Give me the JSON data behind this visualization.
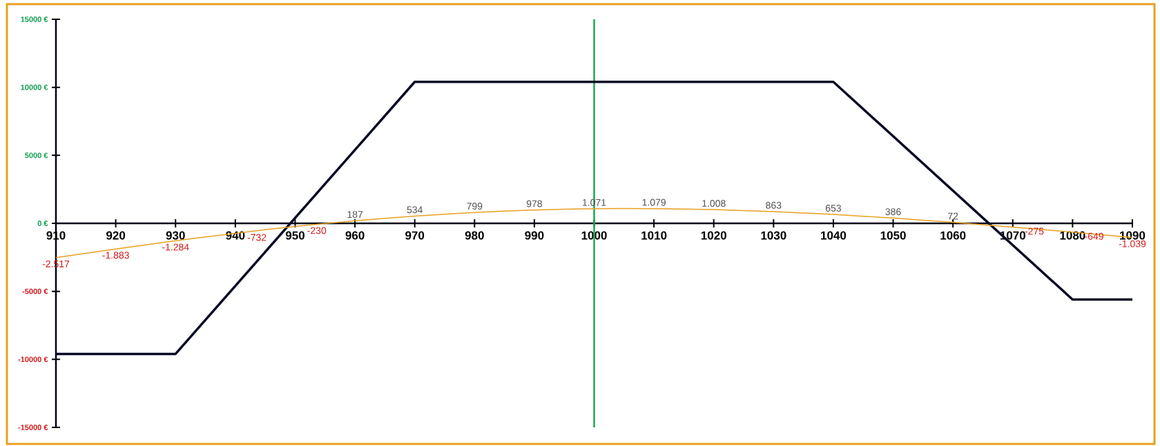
{
  "chart_data": {
    "type": "line",
    "xlim": [
      910,
      1090
    ],
    "ylim": [
      -15000,
      15000
    ],
    "xticks": [
      910,
      920,
      930,
      940,
      950,
      960,
      970,
      980,
      990,
      1000,
      1010,
      1020,
      1030,
      1040,
      1050,
      1060,
      1070,
      1080,
      1090
    ],
    "yticks": [
      {
        "value": -15000,
        "label": "-15000 €"
      },
      {
        "value": -10000,
        "label": "-10000 €"
      },
      {
        "value": -5000,
        "label": "-5000 €"
      },
      {
        "value": 0,
        "label": "0 €"
      },
      {
        "value": 5000,
        "label": "5000 €"
      },
      {
        "value": 10000,
        "label": "10000 €"
      },
      {
        "value": 15000,
        "label": "15000 €"
      }
    ],
    "marker": "none",
    "line_style": "solid",
    "series": [
      {
        "color": "#080a24",
        "x": [
          910,
          930,
          970,
          1040,
          1080,
          1090
        ],
        "values": [
          -9600,
          -9600,
          10400,
          10400,
          -5600,
          -5600
        ]
      },
      {
        "color": "#e8a020",
        "x": [
          910,
          920,
          930,
          940,
          950,
          960,
          970,
          980,
          990,
          1000,
          1010,
          1020,
          1030,
          1040,
          1050,
          1060,
          1070,
          1080,
          1090
        ],
        "values": [
          -2517,
          -1883,
          -1284,
          -732,
          -230,
          187,
          534,
          799,
          978,
          1071,
          1079,
          1008,
          863,
          653,
          386,
          72,
          -275,
          -649,
          -1039
        ],
        "value_labels": [
          "-2.517",
          "-1.883",
          "-1.284",
          "-732",
          "-230",
          "187",
          "534",
          "799",
          "978",
          "1.071",
          "1.079",
          "1.008",
          "863",
          "653",
          "386",
          "72",
          "-275",
          "-649",
          "-1.039"
        ]
      }
    ],
    "ref_lines": [
      {
        "axis": "x",
        "value": 1000,
        "color": "#1aaa50"
      }
    ]
  }
}
